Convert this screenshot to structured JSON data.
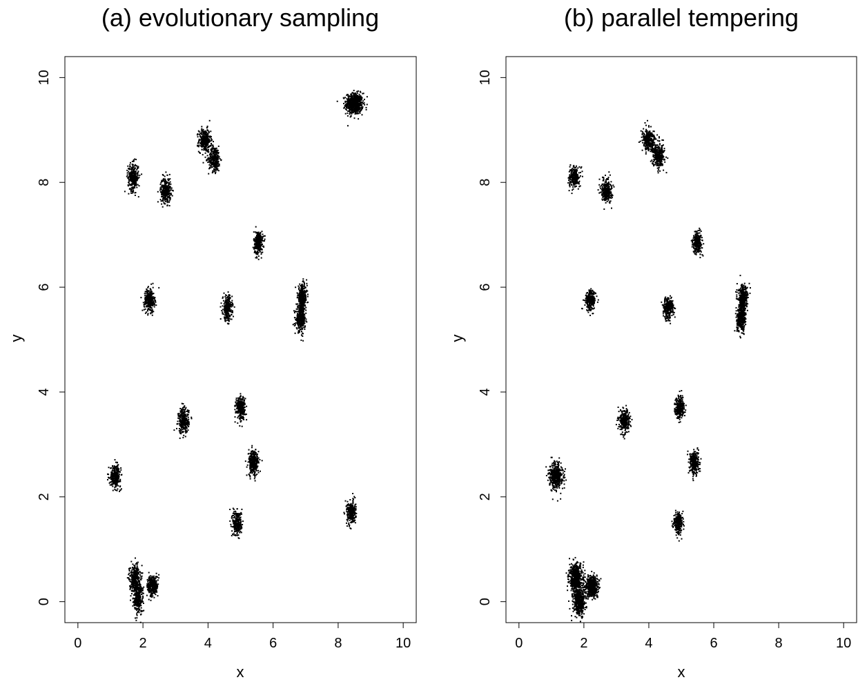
{
  "chart_data": [
    {
      "type": "scatter",
      "title": "(a) evolutionary sampling",
      "xlabel": "x",
      "ylabel": "y",
      "xlim": [
        -0.4,
        10.4
      ],
      "ylim": [
        -0.4,
        10.4
      ],
      "xticks": [
        "0",
        "2",
        "4",
        "6",
        "8",
        "10"
      ],
      "yticks": [
        "0",
        "2",
        "4",
        "6",
        "8",
        "10"
      ],
      "grid": false,
      "clusters": [
        {
          "x": 8.5,
          "y": 9.5,
          "sx": 0.13,
          "sy": 0.1,
          "n": 600
        },
        {
          "x": 3.9,
          "y": 8.8,
          "sx": 0.09,
          "sy": 0.11,
          "n": 300
        },
        {
          "x": 4.2,
          "y": 8.45,
          "sx": 0.09,
          "sy": 0.12,
          "n": 300
        },
        {
          "x": 1.7,
          "y": 8.1,
          "sx": 0.08,
          "sy": 0.13,
          "n": 300
        },
        {
          "x": 2.7,
          "y": 7.85,
          "sx": 0.08,
          "sy": 0.12,
          "n": 300
        },
        {
          "x": 5.55,
          "y": 6.85,
          "sx": 0.07,
          "sy": 0.11,
          "n": 300
        },
        {
          "x": 2.2,
          "y": 5.75,
          "sx": 0.08,
          "sy": 0.11,
          "n": 300
        },
        {
          "x": 4.6,
          "y": 5.6,
          "sx": 0.07,
          "sy": 0.12,
          "n": 280
        },
        {
          "x": 6.9,
          "y": 5.8,
          "sx": 0.07,
          "sy": 0.12,
          "n": 320
        },
        {
          "x": 6.85,
          "y": 5.4,
          "sx": 0.07,
          "sy": 0.12,
          "n": 320
        },
        {
          "x": 5.0,
          "y": 3.7,
          "sx": 0.07,
          "sy": 0.11,
          "n": 300
        },
        {
          "x": 3.25,
          "y": 3.45,
          "sx": 0.08,
          "sy": 0.12,
          "n": 300
        },
        {
          "x": 5.4,
          "y": 2.65,
          "sx": 0.08,
          "sy": 0.12,
          "n": 300
        },
        {
          "x": 1.15,
          "y": 2.4,
          "sx": 0.08,
          "sy": 0.1,
          "n": 300
        },
        {
          "x": 8.4,
          "y": 1.7,
          "sx": 0.07,
          "sy": 0.11,
          "n": 280
        },
        {
          "x": 4.9,
          "y": 1.5,
          "sx": 0.07,
          "sy": 0.12,
          "n": 280
        },
        {
          "x": 1.75,
          "y": 0.45,
          "sx": 0.08,
          "sy": 0.13,
          "n": 350
        },
        {
          "x": 1.85,
          "y": 0.05,
          "sx": 0.08,
          "sy": 0.13,
          "n": 300
        },
        {
          "x": 2.3,
          "y": 0.3,
          "sx": 0.08,
          "sy": 0.1,
          "n": 300
        }
      ]
    },
    {
      "type": "scatter",
      "title": "(b) parallel tempering",
      "xlabel": "x",
      "ylabel": "y",
      "xlim": [
        -0.4,
        10.4
      ],
      "ylim": [
        -0.4,
        10.4
      ],
      "xticks": [
        "0",
        "2",
        "4",
        "6",
        "8",
        "10"
      ],
      "yticks": [
        "0",
        "2",
        "4",
        "6",
        "8",
        "10"
      ],
      "grid": false,
      "clusters": [
        {
          "x": 4.0,
          "y": 8.8,
          "sx": 0.1,
          "sy": 0.1,
          "n": 320
        },
        {
          "x": 4.3,
          "y": 8.5,
          "sx": 0.09,
          "sy": 0.11,
          "n": 300
        },
        {
          "x": 1.7,
          "y": 8.1,
          "sx": 0.08,
          "sy": 0.1,
          "n": 250
        },
        {
          "x": 2.7,
          "y": 7.85,
          "sx": 0.08,
          "sy": 0.11,
          "n": 300
        },
        {
          "x": 5.5,
          "y": 6.85,
          "sx": 0.07,
          "sy": 0.1,
          "n": 280
        },
        {
          "x": 2.2,
          "y": 5.75,
          "sx": 0.08,
          "sy": 0.1,
          "n": 250
        },
        {
          "x": 4.6,
          "y": 5.6,
          "sx": 0.08,
          "sy": 0.1,
          "n": 300
        },
        {
          "x": 6.9,
          "y": 5.8,
          "sx": 0.07,
          "sy": 0.11,
          "n": 350
        },
        {
          "x": 6.85,
          "y": 5.4,
          "sx": 0.07,
          "sy": 0.12,
          "n": 350
        },
        {
          "x": 4.95,
          "y": 3.7,
          "sx": 0.07,
          "sy": 0.1,
          "n": 300
        },
        {
          "x": 3.25,
          "y": 3.45,
          "sx": 0.08,
          "sy": 0.11,
          "n": 280
        },
        {
          "x": 5.4,
          "y": 2.65,
          "sx": 0.07,
          "sy": 0.11,
          "n": 300
        },
        {
          "x": 1.15,
          "y": 2.4,
          "sx": 0.1,
          "sy": 0.12,
          "n": 450
        },
        {
          "x": 4.9,
          "y": 1.5,
          "sx": 0.07,
          "sy": 0.1,
          "n": 250
        },
        {
          "x": 1.75,
          "y": 0.45,
          "sx": 0.1,
          "sy": 0.13,
          "n": 550
        },
        {
          "x": 1.85,
          "y": 0.0,
          "sx": 0.09,
          "sy": 0.13,
          "n": 450
        },
        {
          "x": 2.25,
          "y": 0.3,
          "sx": 0.1,
          "sy": 0.1,
          "n": 500
        }
      ]
    }
  ]
}
